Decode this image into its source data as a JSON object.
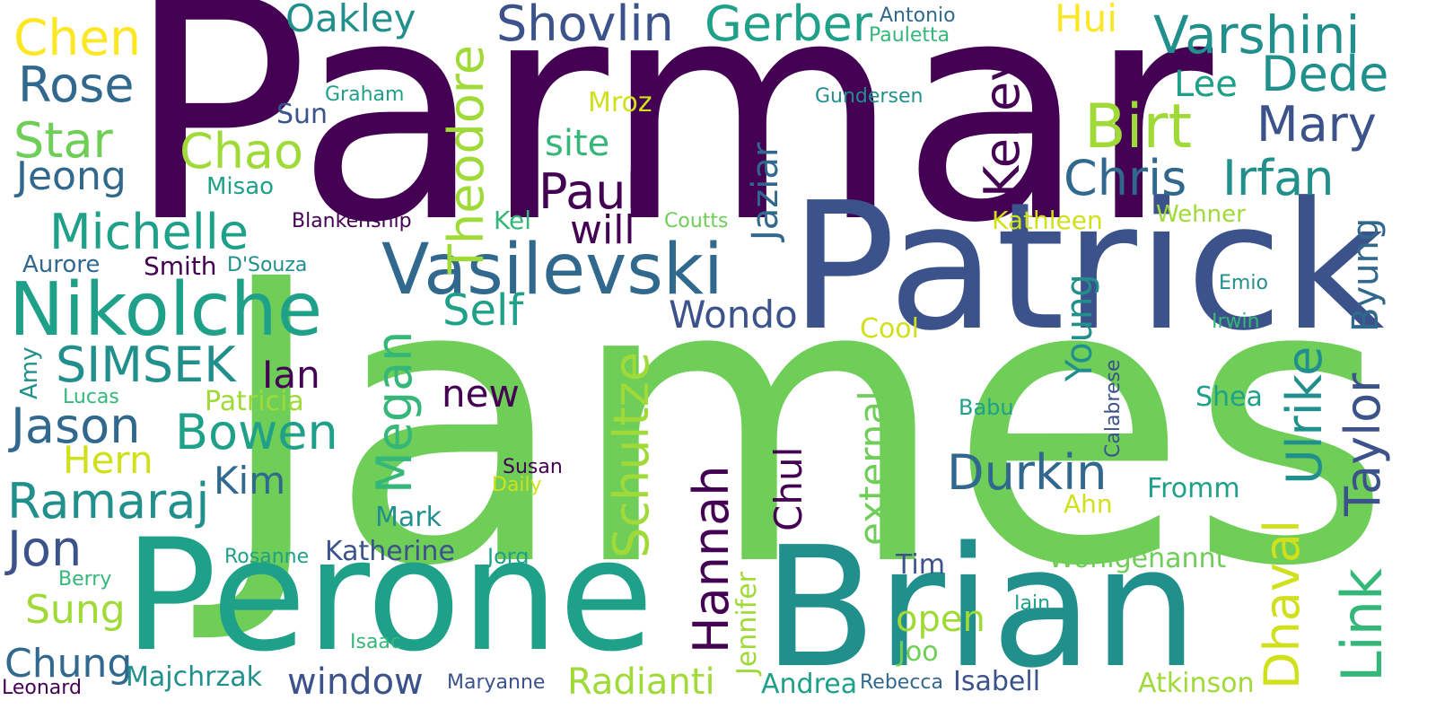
{
  "title": "Word cloud of names",
  "colors": {
    "background": "#ffffff",
    "c0": "#440154",
    "c1": "#3b528b",
    "c2": "#31688e",
    "c3": "#21908c",
    "c4": "#1fa088",
    "c5": "#35b779",
    "c6": "#6ece58",
    "c7": "#a0da39",
    "c8": "#d0e11c",
    "c9": "#fde725"
  },
  "words": [
    {
      "text": "Parmar",
      "color": "c0",
      "vertical": false
    },
    {
      "text": "James",
      "color": "c6",
      "vertical": false
    },
    {
      "text": "Patrick",
      "color": "c1",
      "vertical": false
    },
    {
      "text": "Perone",
      "color": "c4",
      "vertical": false
    },
    {
      "text": "Brian",
      "color": "c3",
      "vertical": false
    },
    {
      "text": "Nikolche",
      "color": "c4",
      "vertical": false
    },
    {
      "text": "Vasilevski",
      "color": "c2",
      "vertical": false
    },
    {
      "text": "Varshini",
      "color": "c3",
      "vertical": false
    },
    {
      "text": "Shovlin",
      "color": "c1",
      "vertical": false
    },
    {
      "text": "Gerber",
      "color": "c4",
      "vertical": false
    },
    {
      "text": "Chen",
      "color": "c9",
      "vertical": false
    },
    {
      "text": "Oakley",
      "color": "c3",
      "vertical": false
    },
    {
      "text": "Hui",
      "color": "c9",
      "vertical": false
    },
    {
      "text": "Antonio",
      "color": "c2",
      "vertical": false
    },
    {
      "text": "Pauletta",
      "color": "c5",
      "vertical": false
    },
    {
      "text": "Rose",
      "color": "c2",
      "vertical": false
    },
    {
      "text": "Dede",
      "color": "c3",
      "vertical": false
    },
    {
      "text": "Lee",
      "color": "c4",
      "vertical": false
    },
    {
      "text": "Graham",
      "color": "c4",
      "vertical": false
    },
    {
      "text": "Mroz",
      "color": "c8",
      "vertical": false
    },
    {
      "text": "Gundersen",
      "color": "c3",
      "vertical": false
    },
    {
      "text": "Star",
      "color": "c6",
      "vertical": false
    },
    {
      "text": "Sun",
      "color": "c1",
      "vertical": false
    },
    {
      "text": "Birt",
      "color": "c7",
      "vertical": false
    },
    {
      "text": "Mary",
      "color": "c1",
      "vertical": false
    },
    {
      "text": "Chao",
      "color": "c7",
      "vertical": false
    },
    {
      "text": "site",
      "color": "c5",
      "vertical": false
    },
    {
      "text": "Jeong",
      "color": "c2",
      "vertical": false
    },
    {
      "text": "Chris",
      "color": "c2",
      "vertical": false
    },
    {
      "text": "Irfan",
      "color": "c3",
      "vertical": false
    },
    {
      "text": "Misao",
      "color": "c4",
      "vertical": false
    },
    {
      "text": "Paul",
      "color": "c0",
      "vertical": false
    },
    {
      "text": "Michelle",
      "color": "c4",
      "vertical": false
    },
    {
      "text": "Blankenship",
      "color": "c0",
      "vertical": false
    },
    {
      "text": "Kel",
      "color": "c5",
      "vertical": false
    },
    {
      "text": "Coutts",
      "color": "c6",
      "vertical": false
    },
    {
      "text": "Kathleen",
      "color": "c8",
      "vertical": false
    },
    {
      "text": "Wehner",
      "color": "c7",
      "vertical": false
    },
    {
      "text": "will",
      "color": "c0",
      "vertical": false
    },
    {
      "text": "Aurore",
      "color": "c2",
      "vertical": false
    },
    {
      "text": "Smith",
      "color": "c0",
      "vertical": false
    },
    {
      "text": "D'Souza",
      "color": "c3",
      "vertical": false
    },
    {
      "text": "Self",
      "color": "c4",
      "vertical": false
    },
    {
      "text": "Wondo",
      "color": "c1",
      "vertical": false
    },
    {
      "text": "Emio",
      "color": "c3",
      "vertical": false
    },
    {
      "text": "Cool",
      "color": "c8",
      "vertical": false
    },
    {
      "text": "Irwin",
      "color": "c5",
      "vertical": false
    },
    {
      "text": "SIMSEK",
      "color": "c3",
      "vertical": false
    },
    {
      "text": "Ian",
      "color": "c0",
      "vertical": false
    },
    {
      "text": "new",
      "color": "c0",
      "vertical": false
    },
    {
      "text": "Shea",
      "color": "c4",
      "vertical": false
    },
    {
      "text": "Lucas",
      "color": "c5",
      "vertical": false
    },
    {
      "text": "Patricia",
      "color": "c7",
      "vertical": false
    },
    {
      "text": "Babu",
      "color": "c4",
      "vertical": false
    },
    {
      "text": "Jason",
      "color": "c2",
      "vertical": false
    },
    {
      "text": "Bowen",
      "color": "c4",
      "vertical": false
    },
    {
      "text": "Hern",
      "color": "c8",
      "vertical": false
    },
    {
      "text": "Durkin",
      "color": "c2",
      "vertical": false
    },
    {
      "text": "Kim",
      "color": "c2",
      "vertical": false
    },
    {
      "text": "Susan",
      "color": "c0",
      "vertical": false
    },
    {
      "text": "Daily",
      "color": "c8",
      "vertical": false
    },
    {
      "text": "Fromm",
      "color": "c4",
      "vertical": false
    },
    {
      "text": "Ramaraj",
      "color": "c3",
      "vertical": false
    },
    {
      "text": "Ahn",
      "color": "c8",
      "vertical": false
    },
    {
      "text": "Mark",
      "color": "c3",
      "vertical": false
    },
    {
      "text": "Jon",
      "color": "c1",
      "vertical": false
    },
    {
      "text": "Rosanne",
      "color": "c4",
      "vertical": false
    },
    {
      "text": "Katherine",
      "color": "c1",
      "vertical": false
    },
    {
      "text": "Jorg",
      "color": "c4",
      "vertical": false
    },
    {
      "text": "Tim",
      "color": "c1",
      "vertical": false
    },
    {
      "text": "Wohlgenannt",
      "color": "c6",
      "vertical": false
    },
    {
      "text": "Berry",
      "color": "c5",
      "vertical": false
    },
    {
      "text": "Sung",
      "color": "c7",
      "vertical": false
    },
    {
      "text": "Iain",
      "color": "c4",
      "vertical": false
    },
    {
      "text": "open",
      "color": "c7",
      "vertical": false
    },
    {
      "text": "Isaac",
      "color": "c5",
      "vertical": false
    },
    {
      "text": "Joo",
      "color": "c6",
      "vertical": false
    },
    {
      "text": "Chung",
      "color": "c2",
      "vertical": false
    },
    {
      "text": "Majchrzak",
      "color": "c3",
      "vertical": false
    },
    {
      "text": "window",
      "color": "c1",
      "vertical": false
    },
    {
      "text": "Maryanne",
      "color": "c1",
      "vertical": false
    },
    {
      "text": "Radianti",
      "color": "c7",
      "vertical": false
    },
    {
      "text": "Andrea",
      "color": "c4",
      "vertical": false
    },
    {
      "text": "Rebecca",
      "color": "c2",
      "vertical": false
    },
    {
      "text": "Isabell",
      "color": "c1",
      "vertical": false
    },
    {
      "text": "Atkinson",
      "color": "c7",
      "vertical": false
    },
    {
      "text": "Leonard",
      "color": "c0",
      "vertical": false
    },
    {
      "text": "Theodore",
      "color": "c7",
      "vertical": true
    },
    {
      "text": "Kelley",
      "color": "c0",
      "vertical": true
    },
    {
      "text": "Jaziar",
      "color": "c2",
      "vertical": true
    },
    {
      "text": "Byung",
      "color": "c2",
      "vertical": true
    },
    {
      "text": "Megan",
      "color": "c5",
      "vertical": true
    },
    {
      "text": "Schultze",
      "color": "c7",
      "vertical": true
    },
    {
      "text": "Young",
      "color": "c3",
      "vertical": true
    },
    {
      "text": "Ulrike",
      "color": "c3",
      "vertical": true
    },
    {
      "text": "Taylor",
      "color": "c1",
      "vertical": true
    },
    {
      "text": "Calabrese",
      "color": "c1",
      "vertical": true
    },
    {
      "text": "external",
      "color": "c6",
      "vertical": true
    },
    {
      "text": "Amy",
      "color": "c3",
      "vertical": true
    },
    {
      "text": "Hannah",
      "color": "c0",
      "vertical": true
    },
    {
      "text": "Chul",
      "color": "c0",
      "vertical": true
    },
    {
      "text": "Link",
      "color": "c5",
      "vertical": true
    },
    {
      "text": "Dhaval",
      "color": "c8",
      "vertical": true
    },
    {
      "text": "Jennifer",
      "color": "c7",
      "vertical": true
    }
  ]
}
